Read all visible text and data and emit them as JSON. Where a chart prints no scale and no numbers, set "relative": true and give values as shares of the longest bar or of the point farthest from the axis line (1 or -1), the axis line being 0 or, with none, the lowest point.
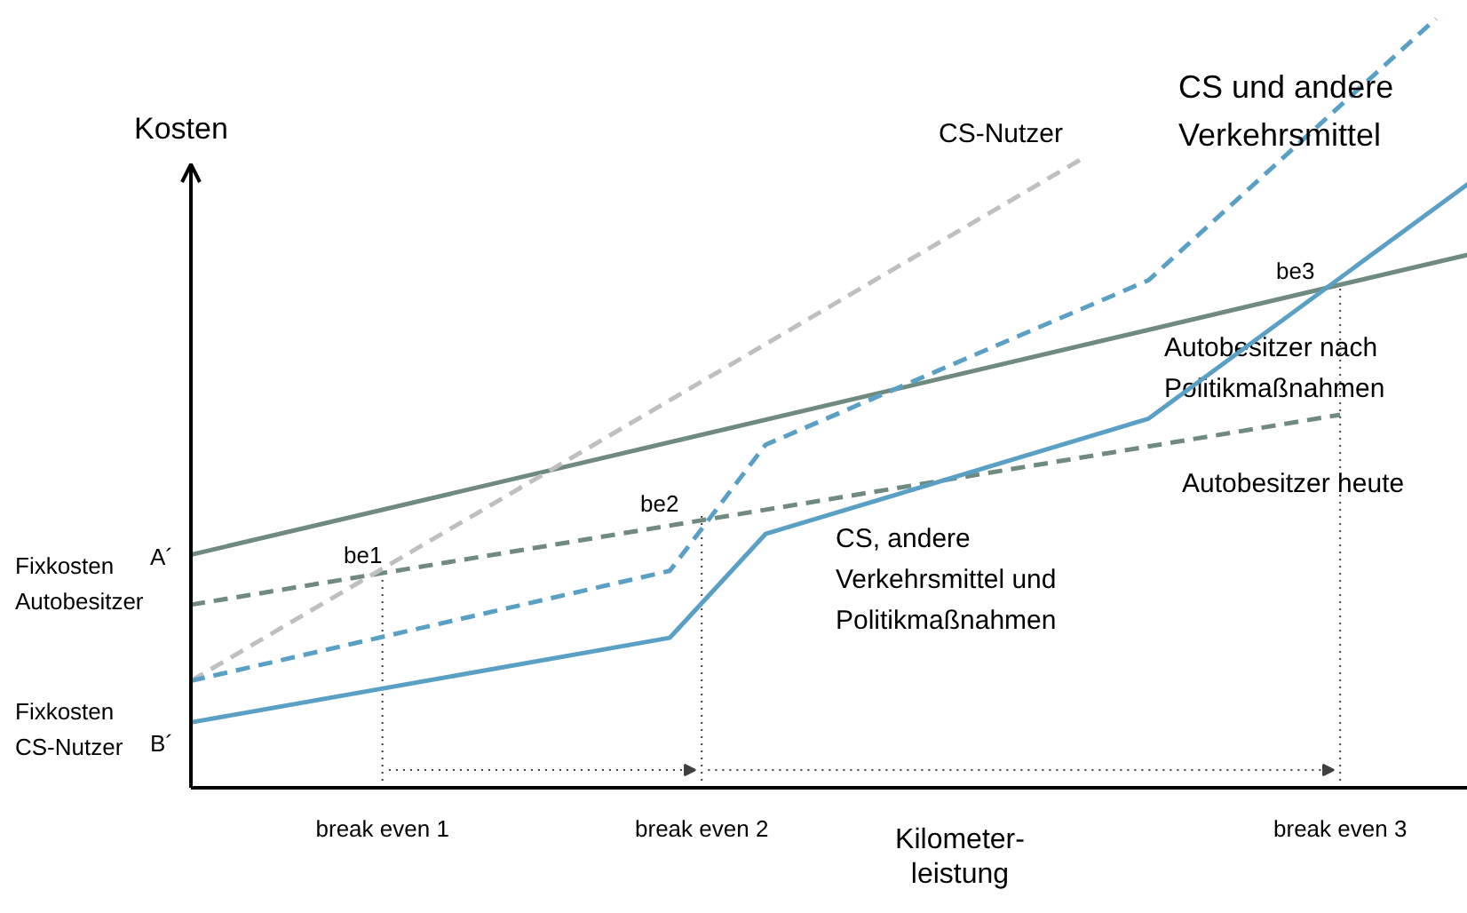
{
  "chart_data": {
    "type": "line",
    "relative": true,
    "ylabel": "Kosten",
    "xlabel": "Kilometer-\nleistung",
    "grid": false,
    "legend": false,
    "categories": [
      null,
      null,
      null,
      null,
      null,
      null,
      "break even 1",
      null,
      null,
      null,
      null,
      null,
      null,
      null,
      null,
      null,
      "break even 2",
      null,
      null,
      null,
      null,
      null,
      null,
      null,
      null,
      null,
      null,
      null,
      null,
      null,
      null,
      null,
      null,
      null,
      null,
      null,
      "break even 3",
      null,
      null,
      null,
      null
    ],
    "series": [
      {
        "name": "Autobesitzer nach\nPolitikmaßnahmen",
        "color": "#6f8a7f",
        "line_style": "solid",
        "values": [
          0.303,
          null,
          null,
          null,
          null,
          null,
          null,
          null,
          null,
          null,
          null,
          null,
          null,
          null,
          null,
          null,
          null,
          null,
          null,
          null,
          null,
          null,
          null,
          null,
          null,
          null,
          null,
          null,
          null,
          null,
          null,
          null,
          null,
          null,
          null,
          null,
          null,
          null,
          null,
          null,
          0.693
        ]
      },
      {
        "name": "Autobesitzer heute",
        "color": "#6f8a7f",
        "line_style": "dashed",
        "values": [
          0.238,
          null,
          null,
          null,
          null,
          null,
          null,
          null,
          null,
          null,
          null,
          null,
          null,
          null,
          null,
          null,
          null,
          null,
          null,
          null,
          null,
          null,
          null,
          null,
          null,
          null,
          null,
          null,
          null,
          null,
          null,
          null,
          null,
          null,
          null,
          null,
          0.485,
          null,
          null,
          null,
          null
        ]
      },
      {
        "name": "CS-Nutzer",
        "color": "#bfbfbf",
        "line_style": "dashed",
        "values": [
          0.139,
          null,
          null,
          null,
          null,
          null,
          null,
          null,
          null,
          null,
          null,
          null,
          null,
          null,
          null,
          null,
          null,
          null,
          null,
          null,
          null,
          null,
          null,
          null,
          null,
          null,
          null,
          null,
          0.82,
          null,
          null,
          null,
          null,
          null,
          null,
          null,
          null,
          null,
          null,
          null,
          null
        ]
      },
      {
        "name": "CS und andere\nVerkehrsmittel",
        "color": "#5a9fc4",
        "line_style": "dashed",
        "values": [
          0.139,
          null,
          null,
          null,
          null,
          null,
          null,
          null,
          null,
          null,
          null,
          null,
          null,
          null,
          null,
          0.282,
          null,
          null,
          0.446,
          null,
          null,
          null,
          null,
          null,
          null,
          null,
          null,
          null,
          null,
          null,
          0.66,
          null,
          null,
          null,
          null,
          null,
          null,
          null,
          null,
          1.0,
          null
        ]
      },
      {
        "name": "CS, andere\nVerkehrsmittel und\nPolitikmaßnahmen",
        "color": "#5a9fc4",
        "line_style": "solid",
        "values": [
          0.085,
          null,
          null,
          null,
          null,
          null,
          null,
          null,
          null,
          null,
          null,
          null,
          null,
          null,
          null,
          0.195,
          null,
          null,
          0.33,
          null,
          null,
          null,
          null,
          null,
          null,
          null,
          null,
          null,
          null,
          null,
          0.48,
          null,
          null,
          null,
          null,
          null,
          null,
          null,
          null,
          null,
          0.785
        ]
      }
    ],
    "ref_lines": [
      {
        "axis": "x",
        "value": "break even 1",
        "label": "be1",
        "line_style": "dotted",
        "color": "#404040"
      },
      {
        "axis": "x",
        "value": "break even 2",
        "label": "be2",
        "line_style": "dotted",
        "color": "#404040"
      },
      {
        "axis": "x",
        "value": "break even 3",
        "label": "be3",
        "line_style": "dotted",
        "color": "#404040"
      }
    ],
    "annotations": [
      "A´",
      "B´",
      "Fixkosten\nAutobesitzer",
      "Fixkosten\nCS-Nutzer"
    ]
  }
}
